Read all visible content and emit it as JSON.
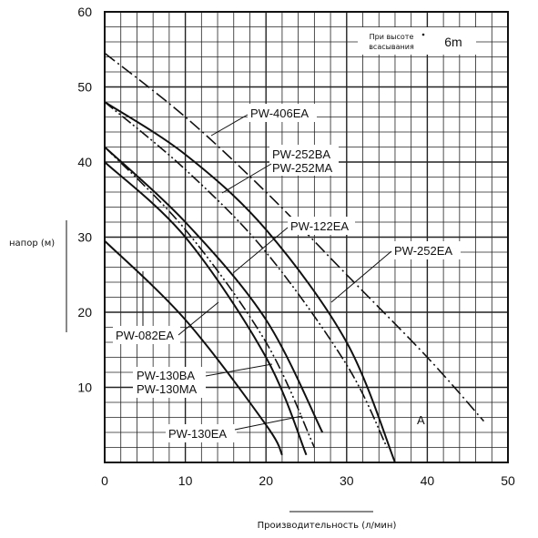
{
  "chart_data": {
    "type": "line",
    "title": "",
    "xlabel": "Производительность (л/мин)",
    "ylabel": "напор (м)",
    "xlim": [
      0,
      50
    ],
    "ylim": [
      0,
      60
    ],
    "x_ticks": [
      0,
      10,
      20,
      30,
      40,
      50
    ],
    "y_ticks": [
      10,
      20,
      30,
      40,
      50,
      60
    ],
    "grid": true,
    "note": {
      "line1": "При высоте",
      "line2": "всасывания",
      "value": "6m"
    },
    "annotation": "A",
    "series": [
      {
        "name": "PW-406EA",
        "style": "dash-dot",
        "x": [
          0,
          10,
          20,
          30,
          40,
          47
        ],
        "y": [
          54.5,
          46,
          36,
          25,
          14,
          5.5
        ]
      },
      {
        "name": "PW-252EA",
        "style": "solid",
        "x": [
          0,
          10,
          20,
          30,
          36
        ],
        "y": [
          48,
          41,
          31,
          16,
          0
        ]
      },
      {
        "name": "PW-252BA / PW-252MA",
        "style": "dash-dot-dot",
        "x": [
          0,
          10,
          20,
          30,
          35
        ],
        "y": [
          48,
          39,
          28,
          13,
          2
        ]
      },
      {
        "name": "PW-122EA",
        "style": "solid",
        "x": [
          0,
          10,
          20,
          27
        ],
        "y": [
          42,
          32,
          19,
          4
        ]
      },
      {
        "name": "PW-130BA / PW-130MA",
        "style": "dash-dot-dot",
        "x": [
          0,
          10,
          20,
          26
        ],
        "y": [
          42,
          31,
          16,
          2
        ]
      },
      {
        "name": "PW-082EA",
        "style": "solid",
        "x": [
          0,
          10,
          20,
          25
        ],
        "y": [
          40,
          30,
          14,
          1
        ]
      },
      {
        "name": "PW-130EA",
        "style": "solid",
        "x": [
          0,
          10,
          20,
          22
        ],
        "y": [
          29.5,
          19,
          5,
          1
        ]
      }
    ],
    "labels": {
      "pw406": "PW-406EA",
      "pw252ba": "PW-252BA",
      "pw252ma": "PW-252MA",
      "pw122": "PW-122EA",
      "pw252ea": "PW-252EA",
      "pw082": "PW-082EA",
      "pw130ba": "PW-130BA",
      "pw130ma": "PW-130MA",
      "pw130ea": "PW-130EA"
    }
  }
}
